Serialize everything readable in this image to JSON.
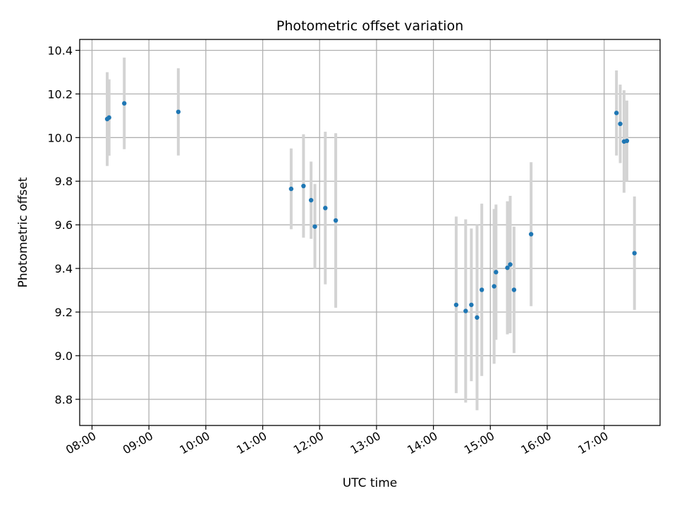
{
  "chart_data": {
    "type": "scatter",
    "title": "Photometric offset variation",
    "xlabel": "UTC time",
    "ylabel": "Photometric offset",
    "xlim": [
      "07:47",
      "17:59"
    ],
    "ylim": [
      8.68,
      10.45
    ],
    "grid": true,
    "x_ticks": [
      "08:00",
      "09:00",
      "10:00",
      "11:00",
      "12:00",
      "13:00",
      "14:00",
      "15:00",
      "16:00",
      "17:00"
    ],
    "y_ticks": [
      "8.8",
      "9.0",
      "9.2",
      "9.4",
      "9.6",
      "9.8",
      "10.0",
      "10.2",
      "10.4"
    ],
    "marker_color": "#1f77b4",
    "errorbar_color": "#d3d3d3",
    "points": [
      {
        "time": "08:16",
        "y": 10.085,
        "yerr": 0.215
      },
      {
        "time": "08:18",
        "y": 10.092,
        "yerr": 0.175
      },
      {
        "time": "08:34",
        "y": 10.157,
        "yerr": 0.21
      },
      {
        "time": "09:31",
        "y": 10.118,
        "yerr": 0.2
      },
      {
        "time": "11:30",
        "y": 9.765,
        "yerr": 0.185
      },
      {
        "time": "11:43",
        "y": 9.778,
        "yerr": 0.237
      },
      {
        "time": "11:51",
        "y": 9.713,
        "yerr": 0.177
      },
      {
        "time": "11:55",
        "y": 9.592,
        "yerr": 0.195
      },
      {
        "time": "12:06",
        "y": 9.677,
        "yerr": 0.35
      },
      {
        "time": "12:17",
        "y": 9.62,
        "yerr": 0.4
      },
      {
        "time": "14:24",
        "y": 9.233,
        "yerr": 0.405
      },
      {
        "time": "14:34",
        "y": 9.205,
        "yerr": 0.42
      },
      {
        "time": "14:40",
        "y": 9.233,
        "yerr": 0.35
      },
      {
        "time": "14:46",
        "y": 9.175,
        "yerr": 0.425
      },
      {
        "time": "14:51",
        "y": 9.302,
        "yerr": 0.395
      },
      {
        "time": "15:04",
        "y": 9.318,
        "yerr": 0.355
      },
      {
        "time": "15:06",
        "y": 9.383,
        "yerr": 0.31
      },
      {
        "time": "15:18",
        "y": 9.403,
        "yerr": 0.305
      },
      {
        "time": "15:21",
        "y": 9.418,
        "yerr": 0.315
      },
      {
        "time": "15:25",
        "y": 9.302,
        "yerr": 0.29
      },
      {
        "time": "15:43",
        "y": 9.557,
        "yerr": 0.33
      },
      {
        "time": "17:13",
        "y": 10.113,
        "yerr": 0.195
      },
      {
        "time": "17:17",
        "y": 10.063,
        "yerr": 0.18
      },
      {
        "time": "17:21",
        "y": 9.982,
        "yerr": 0.235
      },
      {
        "time": "17:24",
        "y": 9.985,
        "yerr": 0.185
      },
      {
        "time": "17:32",
        "y": 9.47,
        "yerr": 0.26
      }
    ]
  }
}
